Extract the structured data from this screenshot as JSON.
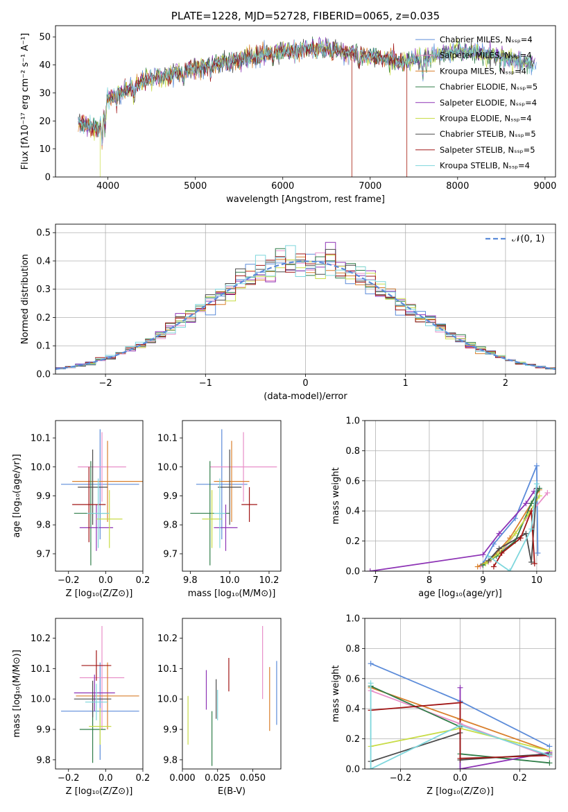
{
  "colors": [
    "#5b8bd9",
    "#e88ec8",
    "#d97f2c",
    "#2f7d48",
    "#8d33b5",
    "#c8dc46",
    "#4a4a4a",
    "#a01414",
    "#7dd6dc"
  ],
  "chart_data": [
    {
      "type": "line",
      "id": "spectrum",
      "title": "PLATE=1228, MJD=52728, FIBERID=0065, z=0.035",
      "xlabel": "wavelength [Angstrom, rest frame]",
      "ylabel": "Flux [fλ10⁻¹⁷ erg cm⁻² s⁻¹ A⁻¹]",
      "xlim": [
        3400,
        9120
      ],
      "ylim": [
        0,
        54
      ],
      "xticks": [
        "4000",
        "5000",
        "6000",
        "7000",
        "8000",
        "9000"
      ],
      "yticks": [
        "0",
        "10",
        "20",
        "30",
        "40",
        "50"
      ],
      "grid": false,
      "legend_position": "right",
      "legend": [
        "Chabrier MILES, Nₛₛₚ=4",
        "Salpeter MILES, Nₛₛₚ=4",
        "Kroupa MILES, Nₛₛₚ=4",
        "Chabrier ELODIE, Nₛₛₚ=5",
        "Salpeter ELODIE, Nₛₛₚ=4",
        "Kroupa ELODIE, Nₛₛₚ=4",
        "Chabrier STELIB, Nₛₛₚ=5",
        "Salpeter STELIB, Nₛₛₚ=5",
        "Kroupa STELIB, Nₛₛₚ=4"
      ],
      "continuum": {
        "x": [
          3650,
          3900,
          4000,
          4200,
          4500,
          5000,
          5500,
          6000,
          6500,
          7000,
          7400,
          8000,
          8500,
          8900
        ],
        "y": [
          20,
          17,
          28,
          31,
          35,
          39,
          42,
          45,
          46,
          43,
          41,
          45,
          43,
          40
        ]
      }
    },
    {
      "type": "histogram",
      "id": "residuals",
      "xlabel": "(data-model)/error",
      "ylabel": "Normed distribution",
      "xlim": [
        -2.5,
        2.5
      ],
      "ylim": [
        0,
        0.53
      ],
      "xticks": [
        "−2",
        "−1",
        "0",
        "1",
        "2"
      ],
      "yticks": [
        "0.0",
        "0.1",
        "0.2",
        "0.3",
        "0.4",
        "0.5"
      ],
      "grid": true,
      "legend": [
        "𝒩(0, 1)"
      ],
      "legend_position": "top-right",
      "bin_width": 0.1
    },
    {
      "type": "scatter",
      "id": "age_vs_Z",
      "xlabel": "Z [log₁₀(Z/Z⊙)]",
      "ylabel": "age  [log₁₀(age/yr)]",
      "xlim": [
        -0.27,
        0.2
      ],
      "ylim": [
        9.64,
        10.16
      ],
      "xticks": [
        "−0.2",
        "0.0",
        "0.2"
      ],
      "yticks": [
        "9.7",
        "9.8",
        "9.9",
        "10.0",
        "10.1"
      ],
      "points": [
        {
          "x": -0.03,
          "y": 9.94,
          "xerr": 0.21,
          "yerr": 0.19
        },
        {
          "x": -0.02,
          "y": 10.0,
          "xerr": 0.13,
          "yerr": 0.12
        },
        {
          "x": 0.01,
          "y": 9.95,
          "xerr": 0.19,
          "yerr": 0.14
        },
        {
          "x": -0.08,
          "y": 9.84,
          "xerr": 0.09,
          "yerr": 0.18
        },
        {
          "x": -0.05,
          "y": 9.79,
          "xerr": 0.09,
          "yerr": 0.08
        },
        {
          "x": 0.02,
          "y": 9.82,
          "xerr": 0.07,
          "yerr": 0.1
        },
        {
          "x": -0.07,
          "y": 9.93,
          "xerr": 0.08,
          "yerr": 0.13
        },
        {
          "x": -0.09,
          "y": 9.87,
          "xerr": 0.09,
          "yerr": 0.13
        },
        {
          "x": -0.04,
          "y": 9.84,
          "xerr": 0.06,
          "yerr": 0.12
        }
      ]
    },
    {
      "type": "scatter",
      "id": "age_vs_mass",
      "xlabel": "mass [log₁₀(M/M⊙)]",
      "ylabel": "",
      "xlim": [
        9.76,
        10.26
      ],
      "ylim": [
        9.64,
        10.16
      ],
      "xticks": [
        "9.8",
        "10.0",
        "10.2"
      ],
      "yticks": [
        "9.7",
        "9.8",
        "9.9",
        "10.0",
        "10.1"
      ],
      "points": [
        {
          "x": 9.96,
          "y": 9.94,
          "xerr": 0.13,
          "yerr": 0.19
        },
        {
          "x": 10.07,
          "y": 10.0,
          "xerr": 0.17,
          "yerr": 0.12
        },
        {
          "x": 10.01,
          "y": 9.95,
          "xerr": 0.09,
          "yerr": 0.14
        },
        {
          "x": 9.9,
          "y": 9.84,
          "xerr": 0.1,
          "yerr": 0.18
        },
        {
          "x": 9.98,
          "y": 9.79,
          "xerr": 0.06,
          "yerr": 0.08
        },
        {
          "x": 9.91,
          "y": 9.82,
          "xerr": 0.05,
          "yerr": 0.1
        },
        {
          "x": 10.0,
          "y": 9.93,
          "xerr": 0.06,
          "yerr": 0.13
        },
        {
          "x": 10.1,
          "y": 9.87,
          "xerr": 0.04,
          "yerr": 0.06
        },
        {
          "x": 9.95,
          "y": 9.84,
          "xerr": 0.03,
          "yerr": 0.12
        }
      ]
    },
    {
      "type": "line",
      "id": "weight_vs_age",
      "xlabel": "age  [log₁₀(age/yr)]",
      "ylabel": "mass weight",
      "xlim": [
        6.8,
        10.35
      ],
      "ylim": [
        0,
        1.0
      ],
      "xticks": [
        "7",
        "8",
        "9",
        "10"
      ],
      "yticks": [
        "0.0",
        "0.2",
        "0.4",
        "0.6",
        "0.8",
        "1.0"
      ],
      "grid": true,
      "series": [
        {
          "x": [
            9.0,
            9.2,
            9.6,
            10.0,
            10.02
          ],
          "y": [
            0.05,
            0.18,
            0.35,
            0.7,
            0.12
          ]
        },
        {
          "x": [
            8.95,
            9.1,
            9.4,
            9.8,
            10.2
          ],
          "y": [
            0.03,
            0.06,
            0.15,
            0.35,
            0.52
          ]
        },
        {
          "x": [
            8.9,
            9.15,
            9.5,
            9.9,
            10.05
          ],
          "y": [
            0.03,
            0.08,
            0.22,
            0.45,
            0.54
          ]
        },
        {
          "x": [
            9.0,
            9.25,
            9.6,
            9.9,
            10.05
          ],
          "y": [
            0.04,
            0.1,
            0.2,
            0.45,
            0.55
          ]
        },
        {
          "x": [
            6.9,
            9.0,
            9.3,
            9.8,
            9.95
          ],
          "y": [
            0.0,
            0.11,
            0.25,
            0.45,
            0.53
          ]
        },
        {
          "x": [
            9.05,
            9.3,
            9.6,
            9.85,
            10.05
          ],
          "y": [
            0.05,
            0.12,
            0.25,
            0.38,
            0.5
          ]
        },
        {
          "x": [
            9.1,
            9.3,
            9.8,
            9.9,
            10.0
          ],
          "y": [
            0.07,
            0.15,
            0.25,
            0.06,
            0.55
          ]
        },
        {
          "x": [
            9.2,
            9.35,
            9.7,
            9.9,
            9.96
          ],
          "y": [
            0.03,
            0.12,
            0.22,
            0.4,
            0.05
          ]
        },
        {
          "x": [
            9.1,
            9.5,
            9.9,
            10.0
          ],
          "y": [
            0.1,
            0.0,
            0.28,
            0.58
          ]
        }
      ]
    },
    {
      "type": "scatter",
      "id": "mass_vs_Z",
      "xlabel": "Z [log₁₀(Z/Z⊙)]",
      "ylabel": "mass [log₁₀(M/M⊙)]",
      "xlim": [
        -0.27,
        0.2
      ],
      "ylim": [
        9.77,
        10.265
      ],
      "xticks": [
        "−0.2",
        "0.0",
        "0.2"
      ],
      "yticks": [
        "9.8",
        "9.9",
        "10.0",
        "10.1",
        "10.2"
      ],
      "points": [
        {
          "x": -0.03,
          "y": 9.96,
          "xerr": 0.21,
          "yerr": 0.16
        },
        {
          "x": -0.02,
          "y": 10.07,
          "xerr": 0.12,
          "yerr": 0.17
        },
        {
          "x": 0.01,
          "y": 10.01,
          "xerr": 0.17,
          "yerr": 0.11
        },
        {
          "x": -0.07,
          "y": 9.9,
          "xerr": 0.07,
          "yerr": 0.11
        },
        {
          "x": -0.06,
          "y": 10.02,
          "xerr": 0.11,
          "yerr": 0.06
        },
        {
          "x": -0.03,
          "y": 9.91,
          "xerr": 0.06,
          "yerr": 0.06
        },
        {
          "x": -0.07,
          "y": 10.0,
          "xerr": 0.1,
          "yerr": 0.06
        },
        {
          "x": -0.05,
          "y": 10.11,
          "xerr": 0.08,
          "yerr": 0.05
        },
        {
          "x": -0.05,
          "y": 9.99,
          "xerr": 0.06,
          "yerr": 0.06
        }
      ]
    },
    {
      "type": "scatter",
      "id": "mass_vs_ebv",
      "xlabel": "E(B-V)",
      "ylabel": "",
      "xlim": [
        0.0,
        0.07
      ],
      "ylim": [
        9.77,
        10.265
      ],
      "xticks": [
        "0.000",
        "0.025",
        "0.050"
      ],
      "yticks": [
        "9.8",
        "9.9",
        "10.0",
        "10.1",
        "10.2"
      ],
      "points": [
        {
          "x": 0.067,
          "y": 10.02,
          "xerr": 0,
          "yerr": 0.105
        },
        {
          "x": 0.057,
          "y": 10.12,
          "xerr": 0,
          "yerr": 0.12
        },
        {
          "x": 0.062,
          "y": 10.0,
          "xerr": 0,
          "yerr": 0.105
        },
        {
          "x": 0.021,
          "y": 9.87,
          "xerr": 0,
          "yerr": 0.09
        },
        {
          "x": 0.017,
          "y": 10.03,
          "xerr": 0,
          "yerr": 0.065
        },
        {
          "x": 0.004,
          "y": 9.93,
          "xerr": 0,
          "yerr": 0.08
        },
        {
          "x": 0.024,
          "y": 10.0,
          "xerr": 0,
          "yerr": 0.065
        },
        {
          "x": 0.033,
          "y": 10.08,
          "xerr": 0,
          "yerr": 0.055
        },
        {
          "x": 0.025,
          "y": 9.98,
          "xerr": 0,
          "yerr": 0.05
        }
      ]
    },
    {
      "type": "line",
      "id": "weight_vs_Z",
      "xlabel": "Z [log₁₀(Z/Z⊙)]",
      "ylabel": "mass weight",
      "xlim": [
        -0.32,
        0.32
      ],
      "ylim": [
        0,
        1.0
      ],
      "xticks": [
        "−0.2",
        "0.0",
        "0.2"
      ],
      "yticks": [
        "0.0",
        "0.2",
        "0.4",
        "0.6",
        "0.8",
        "1.0"
      ],
      "grid": true,
      "series": [
        {
          "x": [
            -0.3,
            0.0,
            0.3
          ],
          "y": [
            0.7,
            0.45,
            0.15
          ]
        },
        {
          "x": [
            -0.3,
            0.0,
            0.3
          ],
          "y": [
            0.52,
            0.3,
            0.08
          ]
        },
        {
          "x": [
            -0.3,
            0.0,
            0.3
          ],
          "y": [
            0.54,
            0.33,
            0.12
          ]
        },
        {
          "x": [
            -0.3,
            0.0,
            0.0,
            0.3
          ],
          "y": [
            0.55,
            0.28,
            0.1,
            0.04
          ]
        },
        {
          "x": [
            0.0,
            0.0,
            0.3
          ],
          "y": [
            0.54,
            0.0,
            0.11
          ]
        },
        {
          "x": [
            -0.3,
            0.0,
            0.3
          ],
          "y": [
            0.15,
            0.27,
            0.12
          ]
        },
        {
          "x": [
            -0.3,
            0.0,
            0.0,
            0.3
          ],
          "y": [
            0.05,
            0.24,
            0.06,
            0.1
          ]
        },
        {
          "x": [
            -0.3,
            0.0,
            0.0,
            0.3
          ],
          "y": [
            0.39,
            0.44,
            0.07,
            0.09
          ]
        },
        {
          "x": [
            -0.3,
            -0.3,
            0.0,
            0.3
          ],
          "y": [
            0.57,
            0.0,
            0.29,
            0.09
          ]
        }
      ]
    }
  ]
}
